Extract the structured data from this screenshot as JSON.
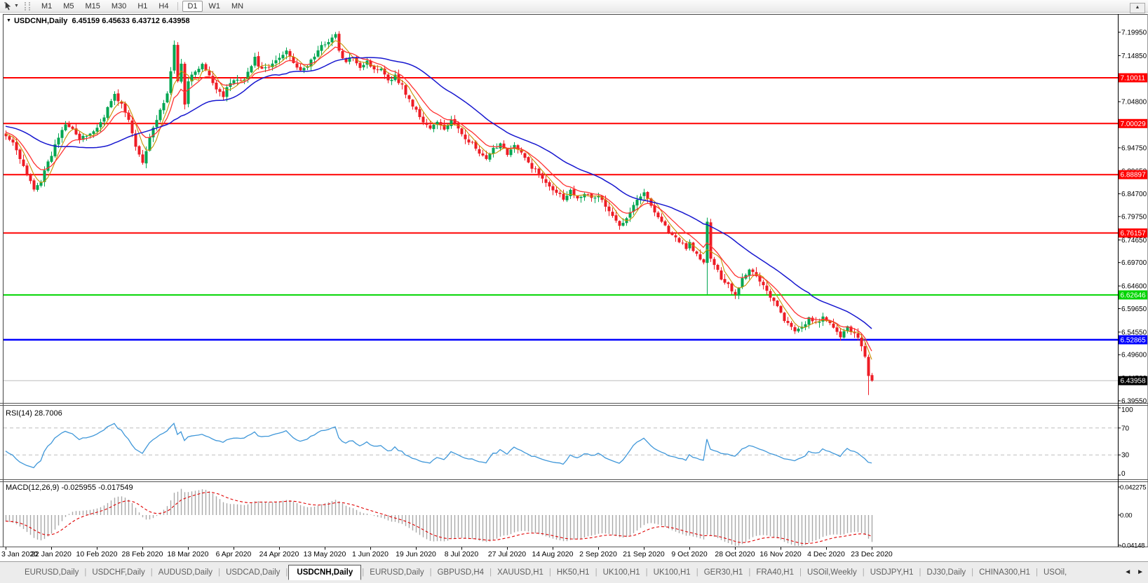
{
  "toolbar": {
    "timeframe_groups": [
      [
        "M1",
        "M5",
        "M15",
        "M30",
        "H1",
        "H4"
      ],
      [
        "D1",
        "W1",
        "MN"
      ]
    ],
    "selected_timeframe": "D1",
    "cursor_dropdown_glyph": "▼",
    "overflow_glyph": "▲"
  },
  "chart": {
    "collapse_glyph": "▼",
    "symbol": "USDCNH",
    "period": "Daily",
    "open": "6.45159",
    "high": "6.45633",
    "low": "6.43712",
    "close": "6.43958",
    "title_text": "USDCNH,Daily  6.45159 6.45633 6.43712 6.43958"
  },
  "chart_data": {
    "type": "candlestick",
    "title": "USDCNH,Daily",
    "x_axis_dates": [
      "3 Jan 2020",
      "22 Jan 2020",
      "10 Feb 2020",
      "28 Feb 2020",
      "18 Mar 2020",
      "6 Apr 2020",
      "24 Apr 2020",
      "13 May 2020",
      "1 Jun 2020",
      "19 Jun 2020",
      "8 Jul 2020",
      "27 Jul 2020",
      "14 Aug 2020",
      "2 Sep 2020",
      "21 Sep 2020",
      "9 Oct 2020",
      "28 Oct 2020",
      "16 Nov 2020",
      "4 Dec 2020",
      "23 Dec 2020"
    ],
    "price_axis_ticks": [
      "7.19950",
      "7.14850",
      "7.09800",
      "7.04800",
      "6.99750",
      "6.94750",
      "6.89650",
      "6.84700",
      "6.79750",
      "6.74650",
      "6.69700",
      "6.64600",
      "6.59650",
      "6.54550",
      "6.49600",
      "6.44500",
      "6.39550"
    ],
    "ylim": [
      6.3955,
      7.1995
    ],
    "grid": false,
    "horizontal_lines": [
      {
        "price": 7.10011,
        "label": "7.10011",
        "color": "#ff0000"
      },
      {
        "price": 7.00029,
        "label": "7.00029",
        "color": "#ff0000"
      },
      {
        "price": 6.88897,
        "label": "6.88897",
        "color": "#ff0000"
      },
      {
        "price": 6.76157,
        "label": "6.76157",
        "color": "#ff0000"
      },
      {
        "price": 6.62646,
        "label": "6.62646",
        "color": "#00d500"
      },
      {
        "price": 6.52865,
        "label": "6.52865",
        "color": "#0000ff"
      }
    ],
    "current_price": {
      "value": 6.43958,
      "label": "6.43958",
      "line_color": "#bbbbbb",
      "box_color": "#000000"
    },
    "last_bar": {
      "open": 6.45159,
      "high": 6.45633,
      "low": 6.43712,
      "close": 6.43958
    },
    "n_candles": 248,
    "up_color": "#00a651",
    "down_color": "#ee1c25",
    "close_path_anchors": [
      [
        0,
        6.975
      ],
      [
        2,
        6.958
      ],
      [
        4,
        6.922
      ],
      [
        6,
        6.888
      ],
      [
        8,
        6.86
      ],
      [
        10,
        6.876
      ],
      [
        13,
        6.932
      ],
      [
        15,
        6.972
      ],
      [
        17,
        7.002
      ],
      [
        19,
        6.992
      ],
      [
        21,
        6.964
      ],
      [
        23,
        6.974
      ],
      [
        26,
        6.99
      ],
      [
        28,
        7.018
      ],
      [
        30,
        7.05
      ],
      [
        31,
        7.062
      ],
      [
        33,
        7.042
      ],
      [
        35,
        7.006
      ],
      [
        37,
        6.95
      ],
      [
        39,
        6.917
      ],
      [
        41,
        6.972
      ],
      [
        43,
        7.01
      ],
      [
        45,
        7.042
      ],
      [
        46,
        7.065
      ],
      [
        47,
        7.118
      ],
      [
        48,
        7.168
      ],
      [
        49,
        7.092
      ],
      [
        50,
        7.13
      ],
      [
        51,
        7.045
      ],
      [
        52,
        7.096
      ],
      [
        54,
        7.112
      ],
      [
        56,
        7.128
      ],
      [
        58,
        7.102
      ],
      [
        60,
        7.078
      ],
      [
        62,
        7.062
      ],
      [
        64,
        7.09
      ],
      [
        66,
        7.096
      ],
      [
        68,
        7.1
      ],
      [
        70,
        7.126
      ],
      [
        71,
        7.142
      ],
      [
        73,
        7.116
      ],
      [
        75,
        7.122
      ],
      [
        77,
        7.138
      ],
      [
        79,
        7.15
      ],
      [
        80,
        7.162
      ],
      [
        82,
        7.136
      ],
      [
        84,
        7.112
      ],
      [
        86,
        7.128
      ],
      [
        88,
        7.148
      ],
      [
        90,
        7.168
      ],
      [
        92,
        7.182
      ],
      [
        94,
        7.193
      ],
      [
        95,
        7.158
      ],
      [
        97,
        7.132
      ],
      [
        99,
        7.148
      ],
      [
        101,
        7.124
      ],
      [
        103,
        7.138
      ],
      [
        105,
        7.116
      ],
      [
        107,
        7.124
      ],
      [
        109,
        7.096
      ],
      [
        111,
        7.104
      ],
      [
        113,
        7.082
      ],
      [
        115,
        7.052
      ],
      [
        117,
        7.028
      ],
      [
        119,
        7.004
      ],
      [
        121,
        6.99
      ],
      [
        123,
        7.002
      ],
      [
        125,
        6.988
      ],
      [
        127,
        7.008
      ],
      [
        129,
        6.986
      ],
      [
        131,
        6.97
      ],
      [
        133,
        6.956
      ],
      [
        135,
        6.934
      ],
      [
        137,
        6.92
      ],
      [
        139,
        6.944
      ],
      [
        141,
        6.958
      ],
      [
        143,
        6.936
      ],
      [
        145,
        6.952
      ],
      [
        147,
        6.934
      ],
      [
        149,
        6.914
      ],
      [
        151,
        6.898
      ],
      [
        153,
        6.882
      ],
      [
        155,
        6.866
      ],
      [
        157,
        6.852
      ],
      [
        159,
        6.838
      ],
      [
        161,
        6.854
      ],
      [
        163,
        6.84
      ],
      [
        165,
        6.85
      ],
      [
        167,
        6.836
      ],
      [
        169,
        6.844
      ],
      [
        171,
        6.82
      ],
      [
        173,
        6.796
      ],
      [
        175,
        6.778
      ],
      [
        177,
        6.798
      ],
      [
        179,
        6.824
      ],
      [
        181,
        6.844
      ],
      [
        182,
        6.848
      ],
      [
        184,
        6.822
      ],
      [
        186,
        6.798
      ],
      [
        188,
        6.776
      ],
      [
        190,
        6.756
      ],
      [
        192,
        6.742
      ],
      [
        194,
        6.73
      ],
      [
        195,
        6.74
      ],
      [
        197,
        6.712
      ],
      [
        199,
        6.695
      ],
      [
        200,
        6.788
      ],
      [
        201,
        6.705
      ],
      [
        202,
        6.69
      ],
      [
        204,
        6.664
      ],
      [
        206,
        6.65
      ],
      [
        207,
        6.636
      ],
      [
        208,
        6.628
      ],
      [
        210,
        6.662
      ],
      [
        212,
        6.684
      ],
      [
        214,
        6.668
      ],
      [
        216,
        6.648
      ],
      [
        218,
        6.624
      ],
      [
        220,
        6.6
      ],
      [
        221,
        6.585
      ],
      [
        223,
        6.562
      ],
      [
        225,
        6.545
      ],
      [
        227,
        6.558
      ],
      [
        229,
        6.574
      ],
      [
        231,
        6.562
      ],
      [
        233,
        6.578
      ],
      [
        234,
        6.57
      ],
      [
        236,
        6.552
      ],
      [
        238,
        6.538
      ],
      [
        240,
        6.554
      ],
      [
        242,
        6.546
      ],
      [
        243,
        6.532
      ],
      [
        244,
        6.518
      ],
      [
        245,
        6.488
      ],
      [
        246,
        6.452
      ],
      [
        247,
        6.4396
      ]
    ],
    "special_bars": [
      {
        "index": 200,
        "low": 6.628,
        "high": 6.795
      },
      {
        "index": 246,
        "low": 6.408
      }
    ],
    "moving_averages": [
      {
        "name": "fast",
        "period": 5,
        "color": "#c79200"
      },
      {
        "name": "medium",
        "period": 10,
        "color": "#ff3232"
      },
      {
        "name": "slow",
        "period": 30,
        "color": "#1717cf"
      }
    ]
  },
  "indicators": {
    "rsi": {
      "label": "RSI(14) 28.7006",
      "period": 14,
      "value": 28.7006,
      "axis_ticks": [
        "100",
        "70",
        "30",
        "0"
      ],
      "axis_values": [
        100,
        70,
        30,
        0
      ],
      "levels": [
        70,
        30
      ],
      "line_color": "#3f97d9"
    },
    "macd": {
      "label": "MACD(12,26,9) -0.025955 -0.017549",
      "fast": 12,
      "slow": 26,
      "signal": 9,
      "main_value": -0.025955,
      "signal_value": -0.017549,
      "axis_ticks": [
        "0.042275",
        "0.00",
        "-0.04148"
      ],
      "axis_values": [
        0.042275,
        0,
        -0.04148
      ],
      "histogram_color": "#a8a8a8",
      "signal_color": "#e00000"
    }
  },
  "tabs": {
    "items": [
      {
        "label": "EURUSD,Daily"
      },
      {
        "label": "USDCHF,Daily"
      },
      {
        "label": "AUDUSD,Daily"
      },
      {
        "label": "USDCAD,Daily"
      },
      {
        "label": "USDCNH,Daily",
        "active": true
      },
      {
        "label": "EURUSD,Daily"
      },
      {
        "label": "GBPUSD,H4"
      },
      {
        "label": "XAUUSD,H1"
      },
      {
        "label": "HK50,H1"
      },
      {
        "label": "UK100,H1"
      },
      {
        "label": "UK100,H1"
      },
      {
        "label": "GER30,H1"
      },
      {
        "label": "FRA40,H1"
      },
      {
        "label": "USOil,Weekly"
      },
      {
        "label": "USDJPY,H1"
      },
      {
        "label": "DJ30,Daily"
      },
      {
        "label": "CHINA300,H1"
      },
      {
        "label": "USOil,"
      }
    ],
    "separator": "|",
    "scroll_left": "◄",
    "scroll_right": "►"
  }
}
